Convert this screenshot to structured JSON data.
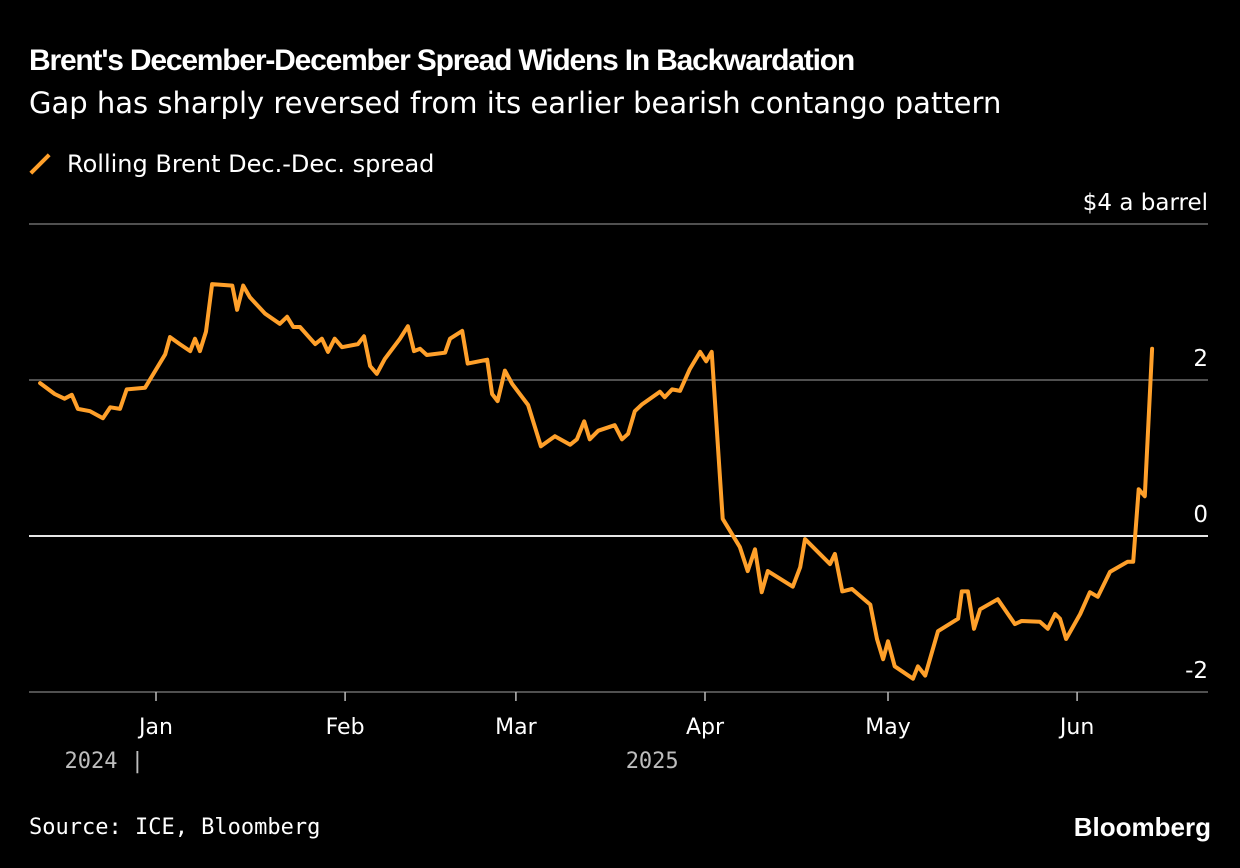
{
  "chart_data": {
    "type": "line",
    "title": "Brent's December-December Spread Widens In Backwardation",
    "subtitle": "Gap has sharply reversed from its earlier bearish contango pattern",
    "xlabel": "",
    "ylabel": "$4 a barrel",
    "x_units": "days since Jan 1, 2025",
    "ylim": [
      -2,
      4
    ],
    "yticks": [
      {
        "value": 4,
        "label": "$4 a barrel"
      },
      {
        "value": 2,
        "label": "2"
      },
      {
        "value": 0,
        "label": "0"
      },
      {
        "value": -2,
        "label": "-2"
      }
    ],
    "xticks": [
      {
        "value": 0,
        "label": "Jan"
      },
      {
        "value": 31,
        "label": "Feb"
      },
      {
        "value": 59,
        "label": "Mar"
      },
      {
        "value": 90,
        "label": "Apr"
      },
      {
        "value": 120,
        "label": "May"
      },
      {
        "value": 151,
        "label": "Jun"
      }
    ],
    "year_labels": [
      {
        "value": -15,
        "label": "2024 |"
      },
      {
        "value": 77,
        "label": "2025"
      }
    ],
    "xlim": [
      -21,
      172
    ],
    "grid": true,
    "legend_position": "top-left",
    "series": [
      {
        "name": "Rolling Brent Dec.-Dec. spread",
        "color": "#ffa02a",
        "x": [
          -19,
          -16.6,
          -15,
          -13.8,
          -12.8,
          -10.8,
          -8.7,
          -7.5,
          -5.9,
          -4.8,
          -1.8,
          1.5,
          2.3,
          3.9,
          5.6,
          6.4,
          7.2,
          8.2,
          9.2,
          12.5,
          13.3,
          14.3,
          15.4,
          17.9,
          20.3,
          21.5,
          22.5,
          23.6,
          26.1,
          27.2,
          28.2,
          29.3,
          30.5,
          33.1,
          34.1,
          35.1,
          36.2,
          37.5,
          40,
          41.3,
          42.3,
          43.3,
          44.4,
          47.4,
          48.2,
          50.2,
          51.1,
          54.3,
          55.1,
          56,
          57.2,
          58.4,
          61,
          63.1,
          65.4,
          67.9,
          69,
          70.2,
          71.1,
          72.5,
          75.2,
          76.4,
          77.4,
          78.5,
          79.7,
          82.6,
          83.4,
          84.6,
          85.9,
          87.5,
          89.2,
          90.2,
          91.1,
          92.9,
          95.7,
          97,
          98.2,
          99.3,
          100.3,
          104.4,
          105.6,
          106.4,
          110.5,
          111.3,
          112.5,
          114.1,
          117.1,
          118.2,
          119.2,
          120,
          121.1,
          124.1,
          124.9,
          126.1,
          128.2,
          131.5,
          132.1,
          133.1,
          134.1,
          135.1,
          138,
          140.8,
          141.9,
          144.9,
          146.2,
          147.4,
          148.2,
          149.2,
          151.5,
          153.1,
          154.4,
          156.4,
          159.3,
          160.2,
          161.1,
          162.1,
          163.3
        ],
        "values": [
          1.96,
          1.82,
          1.76,
          1.81,
          1.63,
          1.6,
          1.51,
          1.65,
          1.63,
          1.88,
          1.9,
          2.33,
          2.55,
          2.46,
          2.37,
          2.53,
          2.37,
          2.62,
          3.23,
          3.21,
          2.9,
          3.21,
          3.06,
          2.85,
          2.72,
          2.81,
          2.68,
          2.68,
          2.46,
          2.53,
          2.36,
          2.53,
          2.42,
          2.46,
          2.56,
          2.18,
          2.08,
          2.27,
          2.53,
          2.69,
          2.37,
          2.4,
          2.32,
          2.35,
          2.53,
          2.63,
          2.21,
          2.26,
          1.82,
          1.73,
          2.12,
          1.95,
          1.68,
          1.15,
          1.28,
          1.17,
          1.24,
          1.47,
          1.24,
          1.35,
          1.42,
          1.24,
          1.31,
          1.6,
          1.69,
          1.85,
          1.78,
          1.88,
          1.86,
          2.14,
          2.36,
          2.24,
          2.36,
          0.22,
          -0.14,
          -0.45,
          -0.17,
          -0.72,
          -0.45,
          -0.65,
          -0.4,
          -0.04,
          -0.36,
          -0.23,
          -0.71,
          -0.68,
          -0.88,
          -1.32,
          -1.58,
          -1.35,
          -1.67,
          -1.83,
          -1.67,
          -1.79,
          -1.22,
          -1.06,
          -0.71,
          -0.71,
          -1.19,
          -0.94,
          -0.81,
          -1.13,
          -1.09,
          -1.1,
          -1.19,
          -1.0,
          -1.06,
          -1.32,
          -1.0,
          -0.72,
          -0.78,
          -0.46,
          -0.33,
          -0.33,
          0.6,
          0.51,
          2.4
        ]
      }
    ]
  },
  "source": "Source: ICE, Bloomberg",
  "brand": "Bloomberg"
}
